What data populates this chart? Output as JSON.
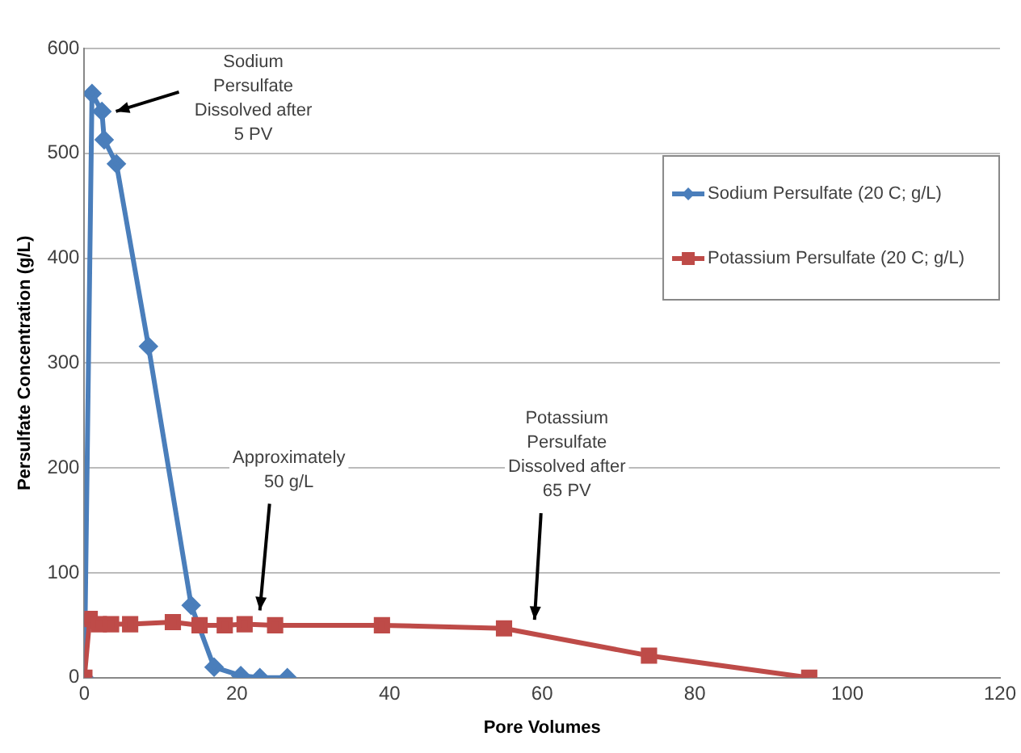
{
  "chart_data": {
    "type": "line",
    "xlabel": "Pore Volumes",
    "ylabel": "Persulfate Concentration (g/L)",
    "xlim": [
      0,
      120
    ],
    "xticks": [
      0,
      20,
      40,
      60,
      80,
      100,
      120
    ],
    "ylim": [
      0,
      600
    ],
    "yticks": [
      0,
      100,
      200,
      300,
      400,
      500,
      600
    ],
    "grid": "y",
    "legend": "top right",
    "series": [
      {
        "name": "Sodium Persulfate (20 C; g/L)",
        "color": "#4a7ebb",
        "marker": "diamond",
        "x": [
          0,
          1,
          2.3,
          2.6,
          4.2,
          8.4,
          14,
          17,
          20.5,
          23,
          26.6
        ],
        "values": [
          0,
          557,
          540,
          513,
          490,
          316,
          69,
          10,
          2,
          0,
          0
        ]
      },
      {
        "name": "Potassium Persulfate (20 C; g/L)",
        "color": "#be4b48",
        "marker": "square",
        "x": [
          0,
          0.7,
          1.9,
          3.5,
          6,
          11.6,
          15.1,
          18.4,
          21,
          25,
          39,
          55,
          74,
          95
        ],
        "values": [
          0,
          56,
          51,
          51,
          51,
          53,
          50,
          50,
          51,
          50,
          50,
          47,
          21,
          0
        ]
      }
    ],
    "annotations": [
      {
        "text": "Sodium\nPersulfate\nDissolved after\n5 PV",
        "x": 3.5,
        "y": 540
      },
      {
        "text": "Approximately\n50 g/L",
        "x": 23,
        "y": 58
      },
      {
        "text": "Potassium\nPersulfate\nDissolved after\n65 PV",
        "x": 59,
        "y": 49
      }
    ]
  }
}
